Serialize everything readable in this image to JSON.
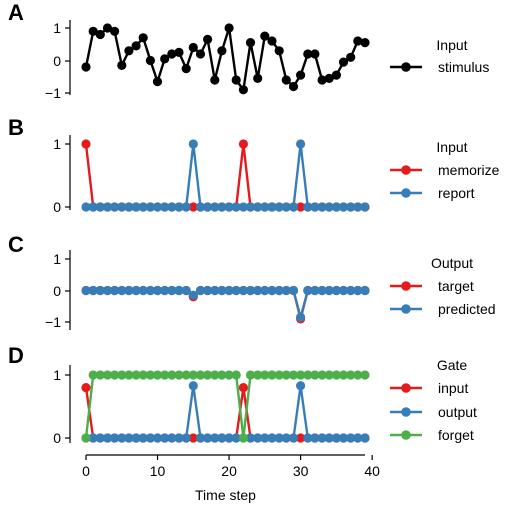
{
  "colors": {
    "black": "#000000",
    "red": "#e41a1c",
    "blue": "#377eb8",
    "green": "#4daf4a"
  },
  "xlabel": "Time step",
  "x_ticks": [
    "0",
    "10",
    "20",
    "30",
    "40"
  ],
  "chart_data": [
    {
      "type": "line",
      "panel": "A",
      "xlim": [
        0,
        39
      ],
      "ylim": [
        -1.1,
        1.2
      ],
      "yticks": [
        "1",
        "0",
        "−1"
      ],
      "legend_title": "Input",
      "series": [
        {
          "name": "stimulus",
          "color": "#000000",
          "values": [
            -0.2,
            0.9,
            0.8,
            1.0,
            0.9,
            -0.15,
            0.3,
            0.45,
            0.7,
            0.0,
            -0.65,
            0.05,
            0.2,
            0.25,
            -0.25,
            0.4,
            0.2,
            0.65,
            -0.6,
            0.3,
            1.0,
            -0.6,
            -0.9,
            0.55,
            -0.55,
            0.75,
            0.6,
            0.3,
            -0.6,
            -0.8,
            -0.45,
            0.2,
            0.2,
            -0.6,
            -0.55,
            -0.45,
            -0.05,
            0.1,
            0.6,
            0.55
          ]
        }
      ]
    },
    {
      "type": "line",
      "panel": "B",
      "xlim": [
        0,
        39
      ],
      "ylim": [
        -0.1,
        1.25
      ],
      "yticks": [
        "1",
        "0"
      ],
      "legend_title": "Input",
      "series": [
        {
          "name": "memorize",
          "color": "#e41a1c",
          "values": [
            1,
            0,
            0,
            0,
            0,
            0,
            0,
            0,
            0,
            0,
            0,
            0,
            0,
            0,
            0,
            0,
            0,
            0,
            0,
            0,
            0,
            0,
            1,
            0,
            0,
            0,
            0,
            0,
            0,
            0,
            0,
            0,
            0,
            0,
            0,
            0,
            0,
            0,
            0,
            0
          ]
        },
        {
          "name": "report",
          "color": "#377eb8",
          "values": [
            0,
            0,
            0,
            0,
            0,
            0,
            0,
            0,
            0,
            0,
            0,
            0,
            0,
            0,
            0,
            1,
            0,
            0,
            0,
            0,
            0,
            0,
            0,
            0,
            0,
            0,
            0,
            0,
            0,
            0,
            1,
            0,
            0,
            0,
            0,
            0,
            0,
            0,
            0,
            0
          ]
        }
      ]
    },
    {
      "type": "line",
      "panel": "C",
      "xlim": [
        0,
        39
      ],
      "ylim": [
        -1.15,
        1.25
      ],
      "yticks": [
        "1",
        "0",
        "−1"
      ],
      "legend_title": "Output",
      "series": [
        {
          "name": "target",
          "color": "#e41a1c",
          "values": [
            0,
            0,
            0,
            0,
            0,
            0,
            0,
            0,
            0,
            0,
            0,
            0,
            0,
            0,
            0,
            -0.2,
            0,
            0,
            0,
            0,
            0,
            0,
            0,
            0,
            0,
            0,
            0,
            0,
            0,
            0,
            -0.9,
            0,
            0,
            0,
            0,
            0,
            0,
            0,
            0,
            0
          ]
        },
        {
          "name": "predicted",
          "color": "#377eb8",
          "values": [
            0,
            0,
            0,
            0,
            0,
            0,
            0,
            0,
            0,
            0,
            0,
            0,
            0,
            0,
            0,
            -0.15,
            0,
            0,
            0,
            0,
            0,
            0,
            0,
            0,
            0,
            0,
            0,
            0,
            0,
            0,
            -0.85,
            0,
            0,
            0,
            0,
            0,
            0,
            0,
            0,
            0
          ]
        }
      ]
    },
    {
      "type": "line",
      "panel": "D",
      "xlim": [
        0,
        39
      ],
      "ylim": [
        -0.1,
        1.2
      ],
      "yticks": [
        "1",
        "0"
      ],
      "legend_title": "Gate",
      "series": [
        {
          "name": "input",
          "color": "#e41a1c",
          "values": [
            0.8,
            0,
            0,
            0,
            0,
            0,
            0,
            0,
            0,
            0,
            0,
            0,
            0,
            0,
            0,
            0,
            0,
            0,
            0,
            0,
            0,
            0,
            0.8,
            0,
            0,
            0,
            0,
            0,
            0,
            0,
            0,
            0,
            0,
            0,
            0,
            0,
            0,
            0,
            0,
            0
          ]
        },
        {
          "name": "output",
          "color": "#377eb8",
          "values": [
            0,
            0,
            0,
            0,
            0,
            0,
            0,
            0,
            0,
            0,
            0,
            0,
            0,
            0,
            0,
            0.83,
            0,
            0,
            0,
            0,
            0,
            0,
            0,
            0,
            0,
            0,
            0,
            0,
            0,
            0,
            0.83,
            0,
            0,
            0,
            0,
            0,
            0,
            0,
            0,
            0
          ]
        },
        {
          "name": "forget",
          "color": "#4daf4a",
          "values": [
            0,
            1,
            1,
            1,
            1,
            1,
            1,
            1,
            1,
            1,
            1,
            1,
            1,
            1,
            1,
            1,
            1,
            1,
            1,
            1,
            1,
            1,
            0,
            1,
            1,
            1,
            1,
            1,
            1,
            1,
            1,
            1,
            1,
            1,
            1,
            1,
            1,
            1,
            1,
            1
          ]
        }
      ]
    }
  ]
}
